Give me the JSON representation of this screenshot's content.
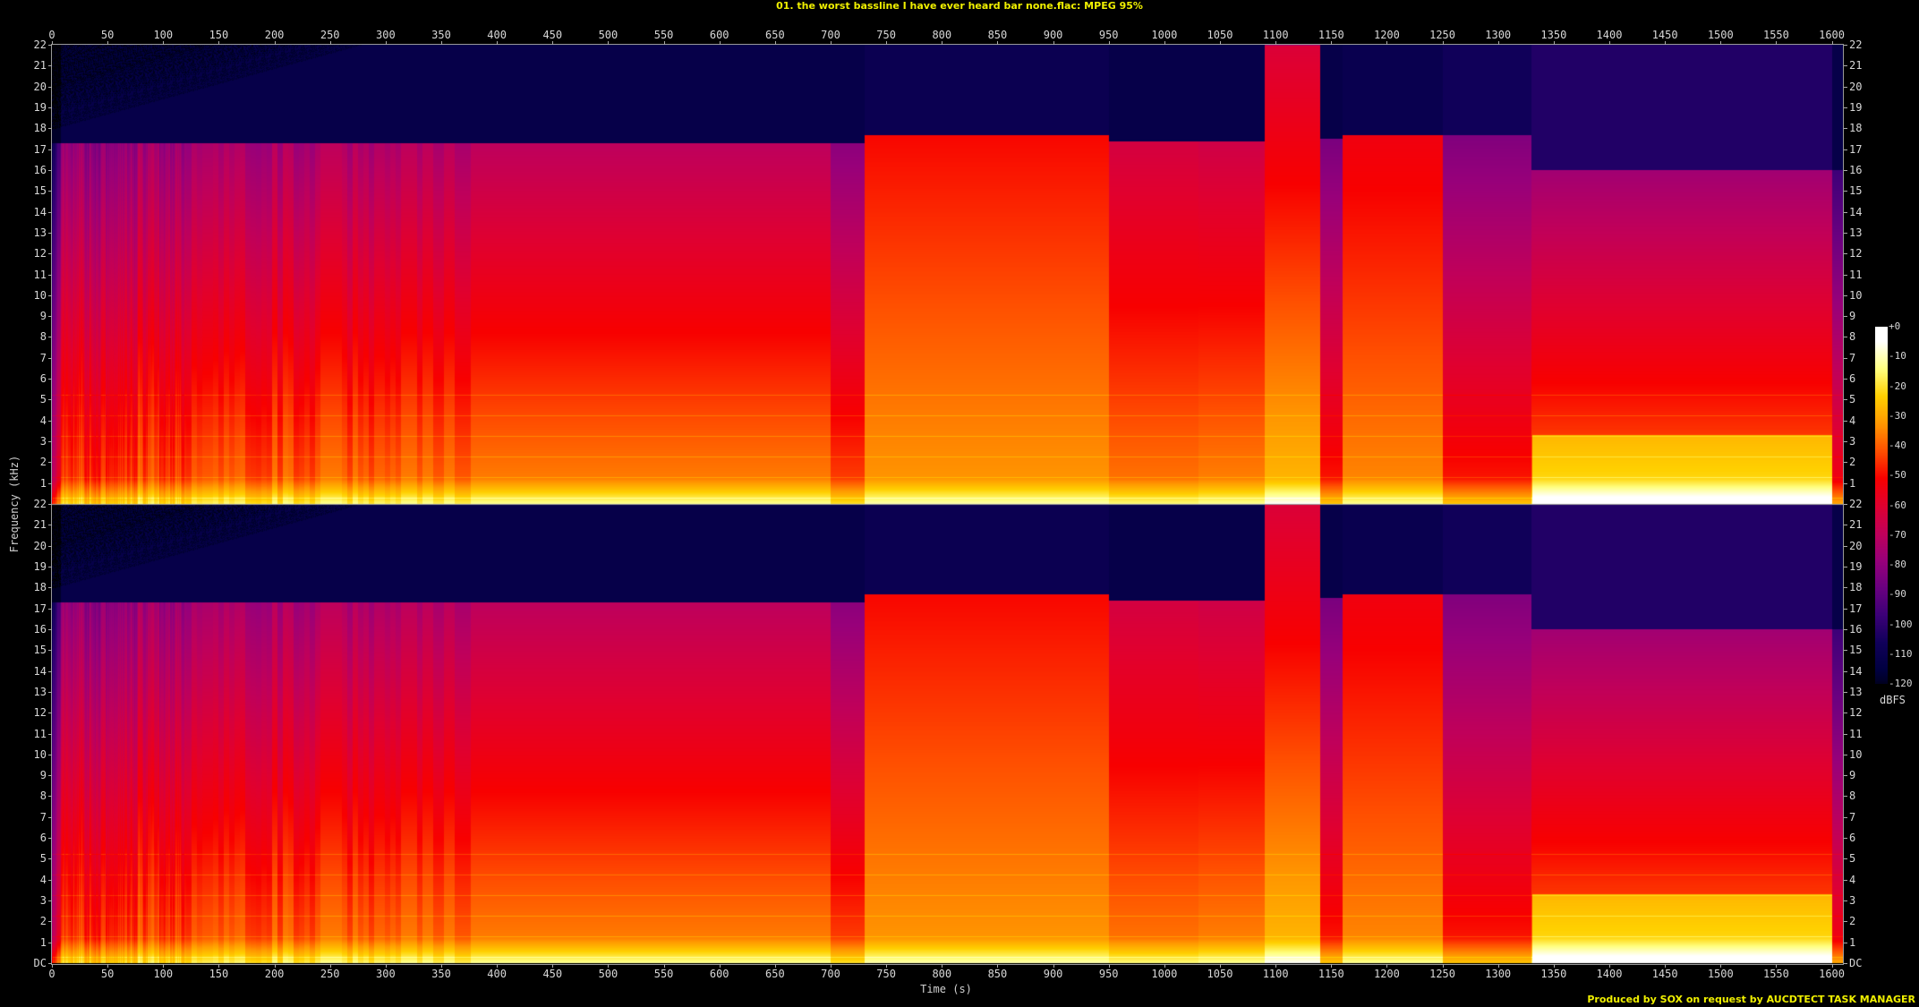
{
  "title": "01. the worst bassline I have ever heard bar none.flac: MPEG 95%",
  "credit": "Produced by SOX on request by AUCDTECT TASK MANAGER",
  "chart_data": {
    "type": "heatmap",
    "subtype": "spectrogram",
    "channels": 2,
    "xlabel": "Time (s)",
    "ylabel": "Frequency (kHz)",
    "xlim": [
      0,
      1610
    ],
    "ylim": [
      0,
      22
    ],
    "x_ticks": [
      "0",
      "50",
      "100",
      "150",
      "200",
      "250",
      "300",
      "350",
      "400",
      "450",
      "500",
      "550",
      "600",
      "650",
      "700",
      "750",
      "800",
      "850",
      "900",
      "950",
      "1000",
      "1050",
      "1100",
      "1150",
      "1200",
      "1250",
      "1300",
      "1350",
      "1400",
      "1450",
      "1500",
      "1550",
      "1600"
    ],
    "y_ticks": [
      "DC",
      "1",
      "2",
      "3",
      "4",
      "5",
      "6",
      "7",
      "8",
      "9",
      "10",
      "11",
      "12",
      "13",
      "14",
      "15",
      "16",
      "17",
      "18",
      "19",
      "20",
      "21",
      "22"
    ],
    "colorbar": {
      "label": "dBFS",
      "range": [
        -120,
        0
      ],
      "ticks": [
        "+0",
        "-10",
        "-20",
        "-30",
        "-40",
        "-50",
        "-60",
        "-70",
        "-80",
        "-90",
        "-100",
        "-110",
        "-120"
      ],
      "colormap": [
        "#000000",
        "#000040",
        "#10005a",
        "#3c0078",
        "#6a0080",
        "#98007a",
        "#c0005a",
        "#e00030",
        "#f80000",
        "#ff5000",
        "#ff9800",
        "#ffd000",
        "#ffff80",
        "#ffffff"
      ]
    },
    "cutoff_khz_approx": "≈17.3 (0–700 s), ≈17.7 (730–1090 s), 22 (1090–1140 s), ≈17.7 (1160–1250 s), ≈16 (1330–1600 s)"
  }
}
